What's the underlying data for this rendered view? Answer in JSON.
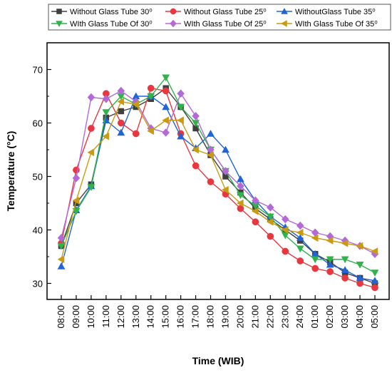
{
  "chart_data": {
    "type": "line",
    "xlabel": "Time (WIB)",
    "ylabel": "Temperature (°C)",
    "categories": [
      "08:00",
      "09:00",
      "10:00",
      "11:00",
      "12:00",
      "13:00",
      "14:00",
      "15:00",
      "16:00",
      "17:00",
      "18:00",
      "19:00",
      "20:00",
      "21:00",
      "22:00",
      "23:00",
      "24:00",
      "01:00",
      "02:00",
      "03:00",
      "04:00",
      "05:00"
    ],
    "yticks": [
      30,
      40,
      50,
      60,
      70
    ],
    "ylim": [
      27,
      75
    ],
    "grid": false,
    "legend_position": "top",
    "series": [
      {
        "name": "Without Glass Tube 30⁰",
        "color": "#3f3f3f",
        "marker": "square",
        "values": [
          37.0,
          45.0,
          48.5,
          61.0,
          62.2,
          63.0,
          64.5,
          66.5,
          63.0,
          59.0,
          54.0,
          50.0,
          47.0,
          44.0,
          42.0,
          40.0,
          38.0,
          35.5,
          34.0,
          32.0,
          31.0,
          30.0
        ]
      },
      {
        "name": "Without Glass Tube 25⁰",
        "color": "#e8373f",
        "marker": "circle",
        "values": [
          37.5,
          51.2,
          59.0,
          65.5,
          60.0,
          58.0,
          66.5,
          66.0,
          58.0,
          52.0,
          49.0,
          46.7,
          44.0,
          41.5,
          38.8,
          36.0,
          34.2,
          32.8,
          32.2,
          31.0,
          30.0,
          29.2
        ]
      },
      {
        "name": "WithoutGlass Tube 35⁰",
        "color": "#1f65d6",
        "marker": "triangle-up",
        "values": [
          33.2,
          43.7,
          48.2,
          60.5,
          58.2,
          65.0,
          65.0,
          63.0,
          57.5,
          55.3,
          58.0,
          55.0,
          49.5,
          45.5,
          42.5,
          40.5,
          38.5,
          35.5,
          33.5,
          32.5,
          31.0,
          30.5
        ]
      },
      {
        "name": "WIth Glass Tube Of 30⁰",
        "color": "#2fb34a",
        "marker": "triangle-down",
        "values": [
          37.0,
          43.5,
          48.0,
          62.0,
          65.0,
          63.5,
          65.0,
          68.5,
          63.0,
          60.0,
          55.0,
          51.0,
          46.5,
          44.5,
          42.5,
          39.0,
          36.5,
          34.5,
          34.5,
          34.5,
          33.5,
          32.0
        ]
      },
      {
        "name": "WIth Glass Tube Of 25⁰",
        "color": "#b36ad6",
        "marker": "diamond",
        "values": [
          38.5,
          49.7,
          64.8,
          64.5,
          66.0,
          64.0,
          59.0,
          58.2,
          65.5,
          61.3,
          55.0,
          51.0,
          48.2,
          45.5,
          44.2,
          42.0,
          40.8,
          39.5,
          38.8,
          38.0,
          37.0,
          35.5
        ]
      },
      {
        "name": "WIth Glass Tube Of 35⁰",
        "color": "#c99a12",
        "marker": "triangle-left",
        "values": [
          34.5,
          45.5,
          54.5,
          57.5,
          64.0,
          63.5,
          58.5,
          60.5,
          60.5,
          55.0,
          54.0,
          47.5,
          45.0,
          43.5,
          41.5,
          40.0,
          39.5,
          38.5,
          38.0,
          37.5,
          37.0,
          36.0
        ]
      }
    ]
  }
}
